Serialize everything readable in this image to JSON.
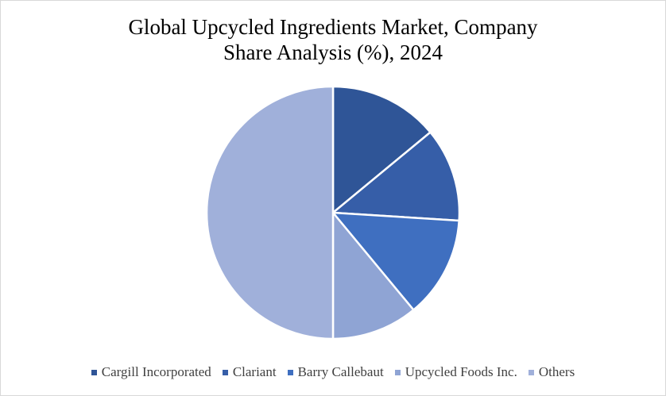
{
  "chart_data": {
    "type": "pie",
    "title_lines": [
      "Global Upcycled Ingredients Market, Company",
      "Share Analysis (%), 2024"
    ],
    "slices": [
      {
        "label": "Cargill Incorporated",
        "value": 14,
        "color": "#2f5597"
      },
      {
        "label": "Clariant",
        "value": 12,
        "color": "#365ea8"
      },
      {
        "label": "Barry Callebaut",
        "value": 13,
        "color": "#3f6fc0"
      },
      {
        "label": "Upcycled Foods Inc.",
        "value": 11,
        "color": "#8fa4d4"
      },
      {
        "label": "Others",
        "value": 50,
        "color": "#a0b0da"
      }
    ],
    "start_angle": "12 o'clock",
    "direction": "clockwise",
    "legend_position": "bottom"
  }
}
